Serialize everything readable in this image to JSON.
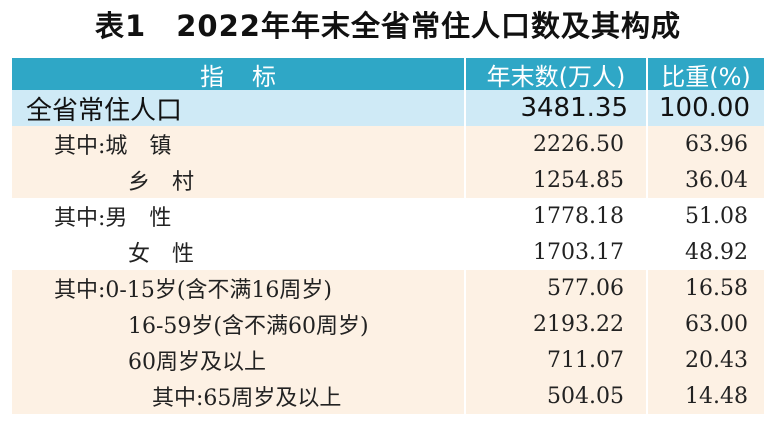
{
  "title": "表1　2022年年末全省常住人口数及其构成",
  "header": {
    "indicator": "指标",
    "count": "年末数(万人)",
    "share": "比重(%)"
  },
  "total": {
    "label": "全省常住人口",
    "count": "3481.35",
    "share": "100.00"
  },
  "rows": [
    {
      "label": "其中:城　镇",
      "count": "2226.50",
      "share": "63.96"
    },
    {
      "label": "乡　村",
      "count": "1254.85",
      "share": "36.04"
    },
    {
      "label": "其中:男　性",
      "count": "1778.18",
      "share": "51.08"
    },
    {
      "label": "女　性",
      "count": "1703.17",
      "share": "48.92"
    },
    {
      "label": "其中:0-15岁(含不满16周岁)",
      "count": "577.06",
      "share": "16.58"
    },
    {
      "label": "16-59岁(含不满60周岁)",
      "count": "2193.22",
      "share": "63.00"
    },
    {
      "label": "60周岁及以上",
      "count": "711.07",
      "share": "20.43"
    },
    {
      "label": "其中:65周岁及以上",
      "count": "504.05",
      "share": "14.48"
    }
  ]
}
